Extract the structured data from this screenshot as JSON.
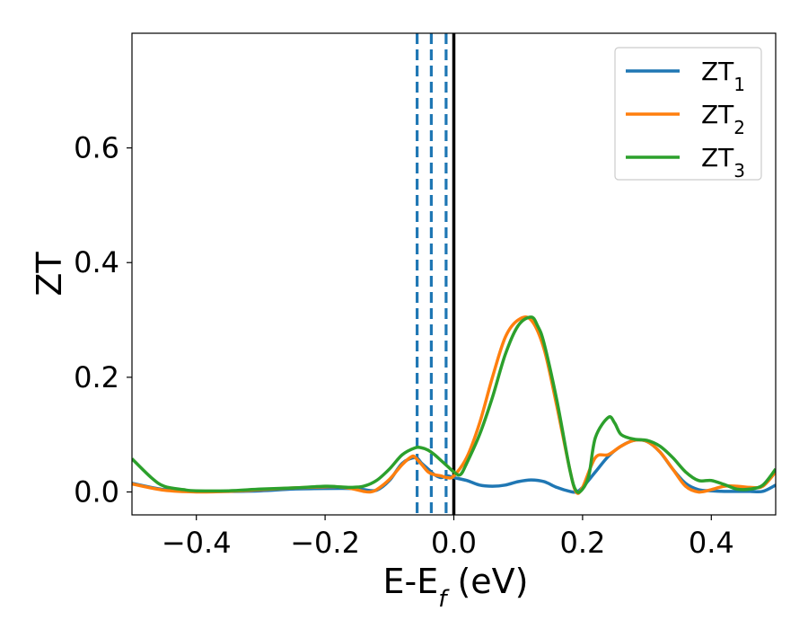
{
  "chart_data": {
    "type": "line",
    "xlabel": "E-E",
    "xlabel_subscript": "f",
    "xlabel_unit": " (eV)",
    "ylabel": "ZT",
    "xlim": [
      -0.5,
      0.5
    ],
    "ylim": [
      -0.04,
      0.8
    ],
    "x_ticks": [
      {
        "value": -0.4,
        "label": "−0.4"
      },
      {
        "value": -0.2,
        "label": "−0.2"
      },
      {
        "value": 0.0,
        "label": "0.0"
      },
      {
        "value": 0.2,
        "label": "0.2"
      },
      {
        "value": 0.4,
        "label": "0.4"
      }
    ],
    "y_ticks": [
      {
        "value": 0.0,
        "label": "0.0"
      },
      {
        "value": 0.2,
        "label": "0.2"
      },
      {
        "value": 0.4,
        "label": "0.4"
      },
      {
        "value": 0.6,
        "label": "0.6"
      }
    ],
    "legend_position": "top-right",
    "vertical_lines": [
      {
        "x": -0.057,
        "style": "dashed",
        "color": "#1f77b4"
      },
      {
        "x": -0.035,
        "style": "dashed",
        "color": "#1f77b4"
      },
      {
        "x": -0.012,
        "style": "dashed",
        "color": "#1f77b4"
      },
      {
        "x": 0.0,
        "style": "solid",
        "color": "#000000"
      }
    ],
    "series": [
      {
        "name": "ZT",
        "name_sub": "1",
        "color": "#1f77b4",
        "x": [
          -0.5,
          -0.45,
          -0.4,
          -0.35,
          -0.3,
          -0.25,
          -0.2,
          -0.16,
          -0.14,
          -0.12,
          -0.1,
          -0.08,
          -0.06,
          -0.05,
          -0.04,
          -0.03,
          -0.02,
          -0.01,
          0.0,
          0.02,
          0.04,
          0.06,
          0.08,
          0.1,
          0.12,
          0.14,
          0.16,
          0.18,
          0.19,
          0.2,
          0.22,
          0.24,
          0.26,
          0.28,
          0.3,
          0.32,
          0.34,
          0.36,
          0.38,
          0.4,
          0.42,
          0.44,
          0.46,
          0.48,
          0.5
        ],
        "y": [
          0.015,
          0.004,
          0.001,
          0.001,
          0.002,
          0.005,
          0.006,
          0.006,
          0.004,
          0.003,
          0.02,
          0.05,
          0.06,
          0.05,
          0.04,
          0.03,
          0.025,
          0.028,
          0.025,
          0.02,
          0.012,
          0.01,
          0.012,
          0.018,
          0.021,
          0.018,
          0.008,
          0.001,
          0.0,
          0.008,
          0.035,
          0.062,
          0.08,
          0.09,
          0.088,
          0.07,
          0.04,
          0.015,
          0.004,
          0.002,
          0.001,
          0.001,
          0.001,
          0.001,
          0.012
        ]
      },
      {
        "name": "ZT",
        "name_sub": "2",
        "color": "#ff7f0e",
        "x": [
          -0.5,
          -0.45,
          -0.4,
          -0.35,
          -0.3,
          -0.25,
          -0.2,
          -0.18,
          -0.16,
          -0.14,
          -0.13,
          -0.12,
          -0.1,
          -0.08,
          -0.065,
          -0.06,
          -0.05,
          -0.04,
          -0.03,
          -0.02,
          -0.01,
          0.0,
          0.02,
          0.04,
          0.06,
          0.08,
          0.1,
          0.12,
          0.14,
          0.16,
          0.18,
          0.19,
          0.2,
          0.22,
          0.24,
          0.26,
          0.28,
          0.3,
          0.32,
          0.34,
          0.36,
          0.38,
          0.4,
          0.42,
          0.44,
          0.46,
          0.48,
          0.5
        ],
        "y": [
          0.014,
          0.003,
          0.0,
          0.001,
          0.004,
          0.007,
          0.009,
          0.009,
          0.006,
          0.001,
          0.0,
          0.004,
          0.022,
          0.048,
          0.062,
          0.06,
          0.048,
          0.035,
          0.03,
          0.028,
          0.025,
          0.028,
          0.06,
          0.12,
          0.2,
          0.27,
          0.3,
          0.3,
          0.25,
          0.15,
          0.04,
          0.0,
          0.008,
          0.06,
          0.065,
          0.08,
          0.09,
          0.088,
          0.07,
          0.04,
          0.01,
          0.0,
          0.004,
          0.01,
          0.01,
          0.008,
          0.01,
          0.035
        ]
      },
      {
        "name": "ZT",
        "name_sub": "3",
        "color": "#2ca02c",
        "x": [
          -0.5,
          -0.47,
          -0.45,
          -0.42,
          -0.4,
          -0.35,
          -0.3,
          -0.25,
          -0.2,
          -0.18,
          -0.16,
          -0.14,
          -0.12,
          -0.1,
          -0.08,
          -0.06,
          -0.05,
          -0.04,
          -0.03,
          -0.02,
          -0.01,
          0.0,
          0.01,
          0.02,
          0.04,
          0.06,
          0.08,
          0.1,
          0.12,
          0.13,
          0.14,
          0.16,
          0.18,
          0.19,
          0.2,
          0.21,
          0.22,
          0.24,
          0.25,
          0.26,
          0.28,
          0.3,
          0.32,
          0.34,
          0.36,
          0.38,
          0.4,
          0.42,
          0.44,
          0.46,
          0.48,
          0.5
        ],
        "y": [
          0.058,
          0.025,
          0.01,
          0.004,
          0.002,
          0.002,
          0.005,
          0.007,
          0.01,
          0.009,
          0.008,
          0.01,
          0.02,
          0.04,
          0.065,
          0.077,
          0.077,
          0.073,
          0.065,
          0.055,
          0.045,
          0.035,
          0.03,
          0.05,
          0.1,
          0.165,
          0.24,
          0.29,
          0.305,
          0.29,
          0.26,
          0.16,
          0.04,
          0.002,
          0.005,
          0.03,
          0.095,
          0.13,
          0.12,
          0.1,
          0.092,
          0.09,
          0.08,
          0.06,
          0.035,
          0.02,
          0.02,
          0.013,
          0.005,
          0.005,
          0.012,
          0.04
        ]
      }
    ]
  }
}
